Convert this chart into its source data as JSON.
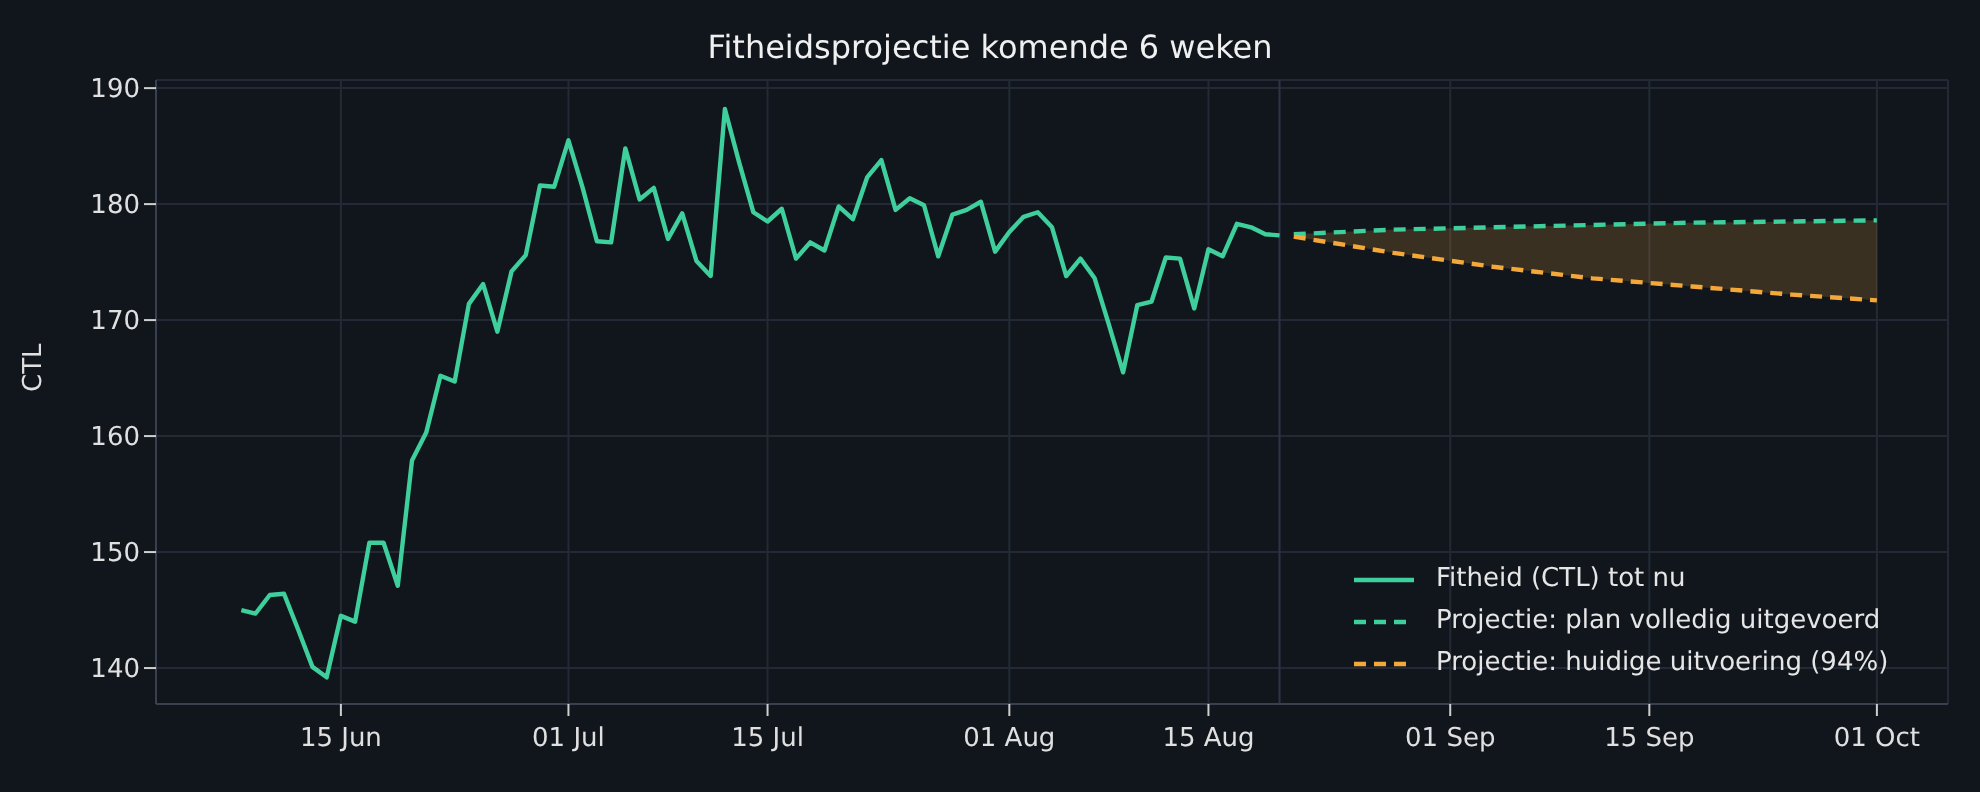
{
  "chart_data": {
    "type": "line",
    "title": "Fitheidsprojectie komende 6 weken",
    "ylabel": "CTL",
    "xlim": [
      "--06-02",
      "--10-06"
    ],
    "ylim": [
      136.9,
      190.7
    ],
    "xticks": [
      {
        "value": "--06-15",
        "label": "15 Jun"
      },
      {
        "value": "--07-01",
        "label": "01 Jul"
      },
      {
        "value": "--07-15",
        "label": "15 Jul"
      },
      {
        "value": "--08-01",
        "label": "01 Aug"
      },
      {
        "value": "--08-15",
        "label": "15 Aug"
      },
      {
        "value": "--09-01",
        "label": "01 Sep"
      },
      {
        "value": "--09-15",
        "label": "15 Sep"
      },
      {
        "value": "--10-01",
        "label": "01 Oct"
      }
    ],
    "yticks": [
      140,
      150,
      160,
      170,
      180,
      190
    ],
    "grid": true,
    "legend": "bottom right",
    "marker": "none",
    "ref_lines": [
      {
        "axis": "x",
        "value": "--08-20",
        "color": "#2e3446"
      }
    ],
    "series": [
      {
        "name": "Fitheid (CTL) tot nu",
        "color": "#3ecf9c",
        "line_style": "solid",
        "x": [
          "--06-08",
          "--06-09",
          "--06-10",
          "--06-11",
          "--06-12",
          "--06-13",
          "--06-14",
          "--06-15",
          "--06-16",
          "--06-17",
          "--06-18",
          "--06-19",
          "--06-20",
          "--06-21",
          "--06-22",
          "--06-23",
          "--06-24",
          "--06-25",
          "--06-26",
          "--06-27",
          "--06-28",
          "--06-29",
          "--06-30",
          "--07-01",
          "--07-02",
          "--07-03",
          "--07-04",
          "--07-05",
          "--07-06",
          "--07-07",
          "--07-08",
          "--07-09",
          "--07-10",
          "--07-11",
          "--07-12",
          "--07-13",
          "--07-14",
          "--07-15",
          "--07-16",
          "--07-17",
          "--07-18",
          "--07-19",
          "--07-20",
          "--07-21",
          "--07-22",
          "--07-23",
          "--07-24",
          "--07-25",
          "--07-26",
          "--07-27",
          "--07-28",
          "--07-29",
          "--07-30",
          "--07-31",
          "--08-01",
          "--08-02",
          "--08-03",
          "--08-04",
          "--08-05",
          "--08-06",
          "--08-07",
          "--08-08",
          "--08-09",
          "--08-10",
          "--08-11",
          "--08-12",
          "--08-13",
          "--08-14",
          "--08-15",
          "--08-16",
          "--08-17",
          "--08-18",
          "--08-19",
          "--08-20"
        ],
        "values": [
          145.0,
          144.7,
          146.3,
          146.4,
          143.3,
          140.1,
          139.2,
          144.5,
          144.0,
          150.8,
          150.8,
          147.1,
          157.9,
          160.3,
          165.2,
          164.7,
          171.4,
          173.1,
          169.0,
          174.2,
          175.6,
          181.6,
          181.5,
          185.5,
          181.4,
          176.8,
          176.7,
          184.8,
          180.4,
          181.4,
          177.0,
          179.2,
          175.1,
          173.8,
          188.2,
          183.6,
          179.3,
          178.5,
          179.6,
          175.3,
          176.7,
          176.0,
          179.8,
          178.7,
          182.3,
          183.8,
          179.5,
          180.5,
          179.9,
          175.5,
          179.1,
          179.5,
          180.2,
          175.9,
          177.6,
          178.9,
          179.3,
          178.0,
          173.8,
          175.3,
          173.6,
          169.6,
          165.5,
          171.3,
          171.6,
          175.4,
          175.3,
          171.0,
          176.1,
          175.5,
          178.3,
          178.0,
          177.4,
          177.3
        ]
      },
      {
        "name": "Projectie: plan volledig uitgevoerd",
        "color": "#3ecf9c",
        "line_style": "dashed",
        "x": [
          "--08-21",
          "--08-28",
          "--09-04",
          "--09-11",
          "--09-18",
          "--09-25",
          "--10-01"
        ],
        "values": [
          177.4,
          177.8,
          178.0,
          178.2,
          178.4,
          178.5,
          178.6
        ]
      },
      {
        "name": "Projectie: huidige uitvoering (94%)",
        "color": "#f5a83a",
        "line_style": "dashed",
        "x": [
          "--08-21",
          "--08-28",
          "--09-04",
          "--09-11",
          "--09-18",
          "--09-25",
          "--10-01"
        ],
        "values": [
          177.2,
          175.8,
          174.6,
          173.6,
          172.9,
          172.2,
          171.7
        ],
        "lower": [
          177.2,
          175.8,
          174.6,
          173.6,
          172.9,
          172.2,
          171.7
        ],
        "upper": [
          177.4,
          177.8,
          178.0,
          178.2,
          178.4,
          178.5,
          178.6
        ]
      }
    ]
  }
}
